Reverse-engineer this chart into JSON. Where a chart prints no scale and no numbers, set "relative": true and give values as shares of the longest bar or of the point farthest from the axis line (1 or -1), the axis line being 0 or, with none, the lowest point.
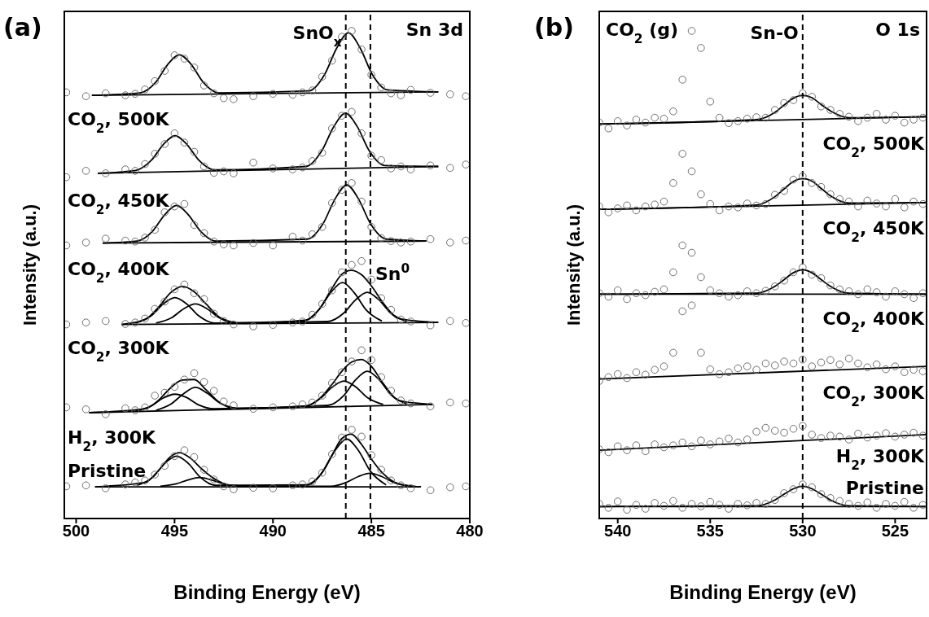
{
  "chart_data": [
    {
      "type": "line",
      "title": "(a)",
      "xlabel": "Binding Energy (eV)",
      "ylabel": "Intensity (a.u.)",
      "relative": true,
      "xlim": [
        500.6,
        480
      ],
      "xticks": [
        500,
        495,
        490,
        485,
        480
      ],
      "x": [
        500.5,
        499.5,
        498.5,
        497.5,
        497,
        496.5,
        496,
        495.5,
        495,
        494.5,
        494,
        493.5,
        493,
        492.5,
        492,
        491,
        490,
        489,
        488.5,
        488,
        487.5,
        487,
        486.5,
        486,
        485.5,
        485,
        484.5,
        484,
        483.5,
        483,
        482,
        481,
        480.2
      ],
      "ref_lines": [
        {
          "axis": "x",
          "value": 486.3,
          "label": "SnO$_{x}$",
          "color": "#000000",
          "line_style": "dashed"
        },
        {
          "axis": "x",
          "value": 485.05,
          "label": "Sn$^{0}$",
          "color": "#000000",
          "line_style": "dashed"
        }
      ],
      "annotations": [
        "Sn 3d"
      ],
      "series": [
        {
          "type": "scatter",
          "name": "CO$_{2}$, 500K",
          "marker": "circle",
          "color": "#6e6e6e",
          "values": [
            0.874,
            0.866,
            0.872,
            0.868,
            0.871,
            0.88,
            0.897,
            0.918,
            0.95,
            0.943,
            0.925,
            0.888,
            0.872,
            0.862,
            0.86,
            0.866,
            0.871,
            0.869,
            0.874,
            0.878,
            0.906,
            0.939,
            0.988,
            1.0,
            0.962,
            0.91,
            0.884,
            0.872,
            0.868,
            0.879,
            0.873,
            0.87,
            0.866
          ]
        },
        {
          "type": "scatter",
          "name": "CO$_{2}$, 450K",
          "marker": "circle",
          "color": "#6e6e6e",
          "values": [
            0.7,
            0.713,
            0.708,
            0.716,
            0.713,
            0.727,
            0.748,
            0.768,
            0.79,
            0.771,
            0.752,
            0.722,
            0.709,
            0.712,
            0.708,
            0.73,
            0.718,
            0.716,
            0.72,
            0.733,
            0.75,
            0.8,
            0.826,
            0.834,
            0.79,
            0.744,
            0.735,
            0.718,
            0.722,
            0.716,
            0.724,
            0.719,
            0.726
          ]
        },
        {
          "type": "scatter",
          "name": "CO$_{2}$, 400K",
          "marker": "circle",
          "color": "#6e6e6e",
          "values": [
            0.56,
            0.566,
            0.574,
            0.57,
            0.568,
            0.576,
            0.592,
            0.628,
            0.64,
            0.645,
            0.602,
            0.585,
            0.568,
            0.562,
            0.56,
            0.565,
            0.56,
            0.578,
            0.57,
            0.583,
            0.598,
            0.647,
            0.674,
            0.688,
            0.65,
            0.598,
            0.575,
            0.569,
            0.566,
            0.568,
            0.573,
            0.566,
            0.57
          ]
        },
        {
          "type": "scatter",
          "name": "CO$_{2}$, 300K",
          "marker": "circle",
          "color": "#6e6e6e",
          "values": [
            0.398,
            0.402,
            0.405,
            0.399,
            0.402,
            0.41,
            0.43,
            0.445,
            0.47,
            0.48,
            0.462,
            0.45,
            0.42,
            0.405,
            0.398,
            0.394,
            0.397,
            0.402,
            0.404,
            0.418,
            0.44,
            0.468,
            0.505,
            0.52,
            0.528,
            0.49,
            0.452,
            0.428,
            0.408,
            0.404,
            0.396,
            0.405,
            0.401
          ]
        },
        {
          "type": "scatter",
          "name": "H$_{2}$, 300K",
          "marker": "circle",
          "color": "#6e6e6e",
          "values": [
            0.228,
            0.224,
            0.214,
            0.226,
            0.222,
            0.228,
            0.252,
            0.258,
            0.27,
            0.285,
            0.298,
            0.28,
            0.262,
            0.24,
            0.232,
            0.225,
            0.228,
            0.23,
            0.234,
            0.238,
            0.252,
            0.278,
            0.3,
            0.322,
            0.345,
            0.325,
            0.29,
            0.262,
            0.242,
            0.236,
            0.23,
            0.238,
            0.236
          ]
        },
        {
          "type": "scatter",
          "name": "Pristine",
          "marker": "circle",
          "color": "#6e6e6e",
          "values": [
            0.066,
            0.068,
            0.062,
            0.07,
            0.074,
            0.078,
            0.09,
            0.108,
            0.128,
            0.14,
            0.126,
            0.1,
            0.08,
            0.066,
            0.06,
            0.063,
            0.062,
            0.068,
            0.07,
            0.076,
            0.094,
            0.132,
            0.166,
            0.182,
            0.168,
            0.13,
            0.1,
            0.078,
            0.068,
            0.062,
            0.058,
            0.064,
            0.066
          ]
        },
        {
          "color": "#000000",
          "x": [
            499.2,
            496.75,
            495.95,
            495.35,
            494.75,
            494.15,
            493.55,
            492.75,
            488.17,
            487.37,
            486.77,
            486.17,
            485.57,
            484.97,
            484.17,
            481.6
          ],
          "values": [
            0.868,
            0.873,
            0.895,
            0.931,
            0.951,
            0.931,
            0.895,
            0.873,
            0.877,
            0.911,
            0.964,
            0.996,
            0.965,
            0.912,
            0.879,
            0.875
          ]
        },
        {
          "color": "#000000",
          "x": [
            499.2,
            481.6
          ],
          "values": [
            0.868,
            0.875
          ]
        },
        {
          "color": "#000000",
          "x": [
            498.9,
            496.97,
            496.17,
            495.57,
            494.97,
            494.37,
            493.77,
            492.97,
            488.32,
            487.52,
            486.92,
            486.32,
            485.72,
            485.12,
            484.32,
            481.6
          ],
          "values": [
            0.708,
            0.714,
            0.735,
            0.767,
            0.785,
            0.767,
            0.735,
            0.715,
            0.722,
            0.754,
            0.803,
            0.831,
            0.804,
            0.755,
            0.724,
            0.722
          ]
        },
        {
          "color": "#000000",
          "x": [
            498.9,
            481.6
          ],
          "values": [
            0.708,
            0.722
          ]
        },
        {
          "color": "#000000",
          "x": [
            498.65,
            496.9,
            496.1,
            495.5,
            494.9,
            494.3,
            493.7,
            492.9,
            488.25,
            487.45,
            486.85,
            486.25,
            485.65,
            485.05,
            484.25,
            482.2
          ],
          "values": [
            0.565,
            0.569,
            0.59,
            0.623,
            0.642,
            0.623,
            0.59,
            0.569,
            0.573,
            0.605,
            0.655,
            0.684,
            0.655,
            0.605,
            0.573,
            0.569
          ]
        },
        {
          "color": "#000000",
          "x": [
            498.65,
            482.2
          ],
          "values": [
            0.565,
            0.569
          ]
        },
        {
          "color": "#000000",
          "x": [
            497.7,
            496.5,
            495.8,
            495.2,
            494.6,
            494.0,
            493.4,
            492.6,
            491.5,
            488.3,
            487.6,
            487.0,
            486.5,
            486.03,
            485.5,
            485.0,
            484.4,
            483.6,
            481.6
          ],
          "values": [
            0.398,
            0.408,
            0.434,
            0.463,
            0.476,
            0.465,
            0.44,
            0.41,
            0.4,
            0.407,
            0.432,
            0.472,
            0.501,
            0.509,
            0.5,
            0.477,
            0.442,
            0.41,
            0.402
          ]
        },
        {
          "color": "#000000",
          "x": [
            497.7,
            481.6
          ],
          "values": [
            0.398,
            0.402
          ]
        },
        {
          "color": "#000000",
          "x": [
            496.98,
            496.18,
            495.58,
            494.98,
            494.38,
            493.78,
            492.98,
            488.47,
            487.67,
            487.07,
            486.47,
            485.87,
            485.27,
            484.47
          ],
          "values": [
            0.401,
            0.416,
            0.44,
            0.453,
            0.44,
            0.416,
            0.401,
            0.405,
            0.428,
            0.463,
            0.484,
            0.463,
            0.428,
            0.405
          ]
        },
        {
          "color": "#000000",
          "x": [
            495.94,
            495.14,
            494.54,
            493.94,
            493.34,
            492.74,
            491.94,
            487.21,
            486.41,
            485.81,
            485.21,
            484.61,
            484.01,
            483.21
          ],
          "values": [
            0.401,
            0.412,
            0.43,
            0.44,
            0.43,
            0.412,
            0.401,
            0.404,
            0.421,
            0.448,
            0.464,
            0.448,
            0.421,
            0.404
          ]
        },
        {
          "color": "#000000",
          "x": [
            499.34,
            496.5,
            495.8,
            495.2,
            494.6,
            494.0,
            493.4,
            492.6,
            491.5,
            488.3,
            487.6,
            487.0,
            486.5,
            486.0,
            485.5,
            485.0,
            484.4,
            483.6,
            481.89
          ],
          "values": [
            0.217,
            0.225,
            0.243,
            0.268,
            0.284,
            0.285,
            0.264,
            0.235,
            0.225,
            0.231,
            0.247,
            0.275,
            0.302,
            0.321,
            0.326,
            0.312,
            0.277,
            0.242,
            0.234
          ]
        },
        {
          "color": "#000000",
          "x": [
            499.34,
            481.89
          ],
          "values": [
            0.217,
            0.234
          ]
        },
        {
          "color": "#000000",
          "x": [
            496.98,
            496.18,
            495.58,
            494.98,
            494.38,
            493.78,
            492.98,
            488.4,
            487.6,
            487.0,
            486.4,
            485.8,
            485.2,
            484.4
          ],
          "values": [
            0.22,
            0.231,
            0.247,
            0.255,
            0.248,
            0.233,
            0.225,
            0.23,
            0.246,
            0.269,
            0.282,
            0.27,
            0.248,
            0.234
          ]
        },
        {
          "color": "#000000",
          "x": [
            495.94,
            495.14,
            494.54,
            493.94,
            493.34,
            492.74,
            491.94,
            487.21,
            486.41,
            485.81,
            485.21,
            484.61,
            484.01,
            483.21
          ],
          "values": [
            0.222,
            0.236,
            0.256,
            0.269,
            0.257,
            0.238,
            0.226,
            0.232,
            0.252,
            0.284,
            0.302,
            0.285,
            0.254,
            0.235
          ]
        },
        {
          "color": "#000000",
          "x": [
            499.04,
            496.5,
            495.8,
            495.2,
            494.75,
            494.2,
            493.6,
            493.0,
            492.2,
            490.5,
            488.3,
            487.6,
            487.0,
            486.5,
            486.03,
            485.5,
            485.0,
            484.4,
            483.6,
            482.48
          ],
          "values": [
            0.065,
            0.074,
            0.099,
            0.127,
            0.135,
            0.124,
            0.101,
            0.082,
            0.068,
            0.065,
            0.069,
            0.089,
            0.13,
            0.164,
            0.173,
            0.152,
            0.122,
            0.092,
            0.071,
            0.065
          ]
        },
        {
          "color": "#000000",
          "x": [
            499.04,
            482.48
          ],
          "values": [
            0.065,
            0.065
          ]
        },
        {
          "color": "#000000",
          "x": [
            496.9,
            496.1,
            495.5,
            494.9,
            494.3,
            493.7,
            492.9,
            488.25,
            487.45,
            486.85,
            486.25,
            485.65,
            485.05,
            484.25
          ],
          "values": [
            0.068,
            0.085,
            0.113,
            0.128,
            0.113,
            0.085,
            0.068,
            0.069,
            0.097,
            0.139,
            0.163,
            0.139,
            0.097,
            0.069
          ]
        },
        {
          "color": "#000000",
          "x": [
            495.72,
            494.92,
            494.32,
            493.72,
            493.12,
            492.52,
            491.72,
            487.07,
            486.27,
            485.67,
            485.07,
            484.47,
            483.87,
            483.07
          ],
          "values": [
            0.066,
            0.071,
            0.079,
            0.084,
            0.079,
            0.071,
            0.066,
            0.066,
            0.074,
            0.086,
            0.093,
            0.086,
            0.074,
            0.066
          ]
        }
      ]
    },
    {
      "type": "line",
      "title": "(b)",
      "xlabel": "Binding Energy (eV)",
      "ylabel": "Intensity (a.u.)",
      "relative": true,
      "xlim": [
        541,
        523.3
      ],
      "xticks": [
        540,
        535,
        530,
        525
      ],
      "x": [
        541,
        540.5,
        540,
        539.5,
        539,
        538.5,
        538,
        537.5,
        537,
        536.5,
        536,
        535.5,
        535,
        534.5,
        534,
        533.5,
        533,
        532.5,
        532,
        531.5,
        531,
        530.5,
        530,
        529.5,
        529,
        528.5,
        528,
        527.5,
        527,
        526.5,
        526,
        525.5,
        525,
        524.5,
        524,
        523.5
      ],
      "ref_lines": [
        {
          "axis": "x",
          "value": 530,
          "label": "Sn-O",
          "color": "#000000",
          "line_style": "dashed"
        }
      ],
      "annotations": [
        "O 1s",
        "CO$_{2}$ (g)"
      ],
      "series": [
        {
          "type": "scatter",
          "name": "CO$_{2}$, 500K",
          "marker": "circle",
          "color": "#6e6e6e",
          "values": [
            0.812,
            0.8,
            0.815,
            0.806,
            0.818,
            0.812,
            0.822,
            0.82,
            0.835,
            0.9,
            1.0,
            0.965,
            0.855,
            0.822,
            0.811,
            0.815,
            0.82,
            0.823,
            0.822,
            0.838,
            0.852,
            0.858,
            0.872,
            0.865,
            0.845,
            0.838,
            0.83,
            0.824,
            0.815,
            0.822,
            0.83,
            0.818,
            0.826,
            0.812,
            0.818,
            0.822
          ]
        },
        {
          "type": "scatter",
          "name": "CO$_{2}$, 450K",
          "marker": "circle",
          "color": "#6e6e6e",
          "values": [
            0.64,
            0.628,
            0.636,
            0.642,
            0.632,
            0.64,
            0.644,
            0.65,
            0.688,
            0.748,
            0.712,
            0.665,
            0.645,
            0.632,
            0.64,
            0.638,
            0.646,
            0.642,
            0.645,
            0.664,
            0.672,
            0.695,
            0.702,
            0.688,
            0.68,
            0.665,
            0.655,
            0.65,
            0.64,
            0.652,
            0.646,
            0.64,
            0.655,
            0.638,
            0.65,
            0.645
          ]
        },
        {
          "type": "scatter",
          "name": "CO$_{2}$, 400K",
          "marker": "circle",
          "color": "#6e6e6e",
          "values": [
            0.462,
            0.455,
            0.468,
            0.45,
            0.462,
            0.458,
            0.465,
            0.47,
            0.505,
            0.56,
            0.545,
            0.495,
            0.468,
            0.462,
            0.455,
            0.458,
            0.466,
            0.462,
            0.467,
            0.476,
            0.488,
            0.505,
            0.515,
            0.5,
            0.493,
            0.478,
            0.47,
            0.466,
            0.46,
            0.47,
            0.464,
            0.455,
            0.466,
            0.46,
            0.452,
            0.462
          ]
        },
        {
          "type": "scatter",
          "name": "CO$_{2}$, 300K",
          "marker": "circle",
          "color": "#6e6e6e",
          "values": [
            0.282,
            0.29,
            0.296,
            0.288,
            0.3,
            0.295,
            0.305,
            0.312,
            0.34,
            0.425,
            0.437,
            0.34,
            0.306,
            0.296,
            0.3,
            0.308,
            0.312,
            0.305,
            0.318,
            0.314,
            0.322,
            0.318,
            0.326,
            0.312,
            0.32,
            0.325,
            0.316,
            0.328,
            0.318,
            0.31,
            0.316,
            0.306,
            0.312,
            0.3,
            0.305,
            0.302
          ]
        },
        {
          "type": "scatter",
          "name": "H$_{2}$, 300K",
          "marker": "circle",
          "color": "#6e6e6e",
          "values": [
            0.142,
            0.136,
            0.148,
            0.14,
            0.15,
            0.138,
            0.152,
            0.146,
            0.15,
            0.156,
            0.148,
            0.16,
            0.152,
            0.158,
            0.164,
            0.156,
            0.162,
            0.178,
            0.186,
            0.18,
            0.176,
            0.184,
            0.19,
            0.172,
            0.165,
            0.17,
            0.168,
            0.162,
            0.174,
            0.166,
            0.17,
            0.175,
            0.168,
            0.172,
            0.176,
            0.17
          ]
        },
        {
          "type": "scatter",
          "name": "Pristine",
          "marker": "circle",
          "color": "#6e6e6e",
          "values": [
            0.03,
            0.022,
            0.035,
            0.018,
            0.028,
            0.02,
            0.032,
            0.026,
            0.036,
            0.022,
            0.03,
            0.025,
            0.034,
            0.028,
            0.02,
            0.03,
            0.027,
            0.032,
            0.03,
            0.038,
            0.052,
            0.06,
            0.07,
            0.064,
            0.05,
            0.042,
            0.036,
            0.03,
            0.026,
            0.033,
            0.022,
            0.03,
            0.026,
            0.034,
            0.022,
            0.028
          ]
        },
        {
          "color": "#000000",
          "x": [
            541,
            532.5,
            531.5,
            531,
            530.5,
            530,
            529.5,
            529,
            528.5,
            527.5,
            523.3
          ],
          "values": [
            0.809,
            0.818,
            0.833,
            0.848,
            0.862,
            0.868,
            0.863,
            0.849,
            0.836,
            0.822,
            0.824
          ]
        },
        {
          "color": "#000000",
          "x": [
            541,
            523.3
          ],
          "values": [
            0.809,
            0.824
          ]
        },
        {
          "color": "#000000",
          "x": [
            541,
            532.5,
            531.5,
            531,
            530.5,
            530,
            529.5,
            529,
            528.5,
            527.5,
            523.3
          ],
          "values": [
            0.634,
            0.643,
            0.66,
            0.676,
            0.691,
            0.697,
            0.692,
            0.677,
            0.662,
            0.647,
            0.648
          ]
        },
        {
          "color": "#000000",
          "x": [
            541,
            523.3
          ],
          "values": [
            0.634,
            0.648
          ]
        },
        {
          "color": "#000000",
          "x": [
            541,
            532.5,
            531.5,
            531,
            530.5,
            530,
            529.5,
            529,
            528.5,
            527.5,
            523.3
          ],
          "values": [
            0.46,
            0.462,
            0.476,
            0.49,
            0.504,
            0.51,
            0.504,
            0.49,
            0.476,
            0.462,
            0.46
          ]
        },
        {
          "color": "#000000",
          "x": [
            541,
            523.3
          ],
          "values": [
            0.46,
            0.46
          ]
        },
        {
          "color": "#000000",
          "x": [
            541,
            523.3
          ],
          "values": [
            0.286,
            0.312
          ]
        },
        {
          "color": "#000000",
          "x": [
            541,
            523.3
          ],
          "values": [
            0.14,
            0.172
          ]
        },
        {
          "color": "#000000",
          "x": [
            541,
            532.5,
            531.5,
            531,
            530.5,
            530,
            529.5,
            529,
            528.5,
            527.5,
            523.3
          ],
          "values": [
            0.0245,
            0.026,
            0.038,
            0.05,
            0.061,
            0.066,
            0.061,
            0.05,
            0.038,
            0.026,
            0.0245
          ]
        },
        {
          "color": "#000000",
          "x": [
            541,
            523.3
          ],
          "values": [
            0.0245,
            0.0245
          ]
        }
      ]
    }
  ]
}
